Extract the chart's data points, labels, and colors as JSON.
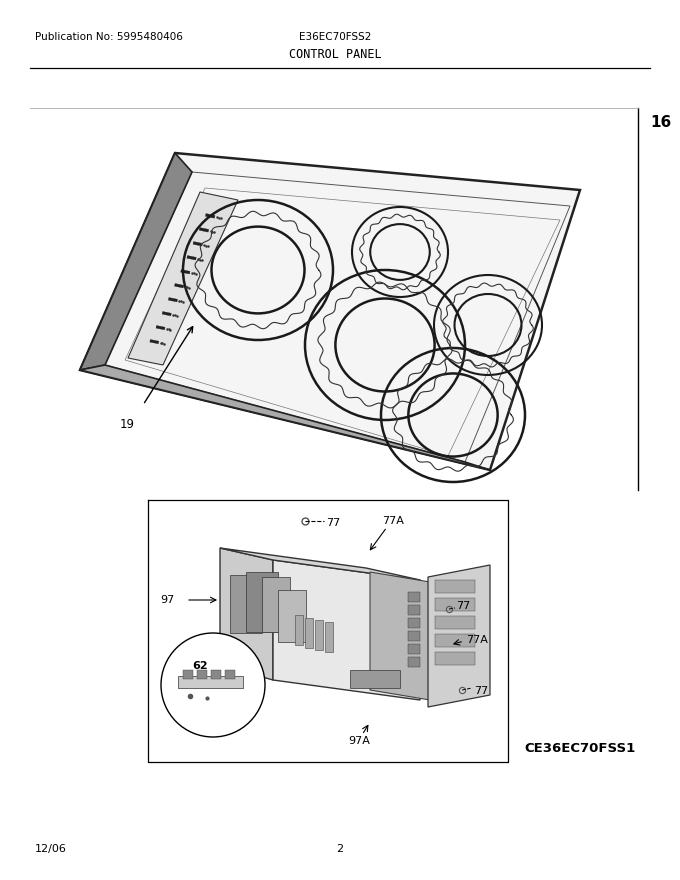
{
  "title_pub": "Publication No: 5995480406",
  "title_model": "E36EC70FSS2",
  "title_section": "CONTROL PANEL",
  "footer_left": "12/06",
  "footer_center": "2",
  "part_16": "16",
  "part_19": "19",
  "part_62": "62",
  "part_77a": "77A",
  "part_77": "77",
  "part_97": "97",
  "part_97a": "97A",
  "sub_model": "CE36EC70FSS1",
  "bg_color": "#ffffff",
  "line_color": "#000000",
  "text_color": "#000000"
}
